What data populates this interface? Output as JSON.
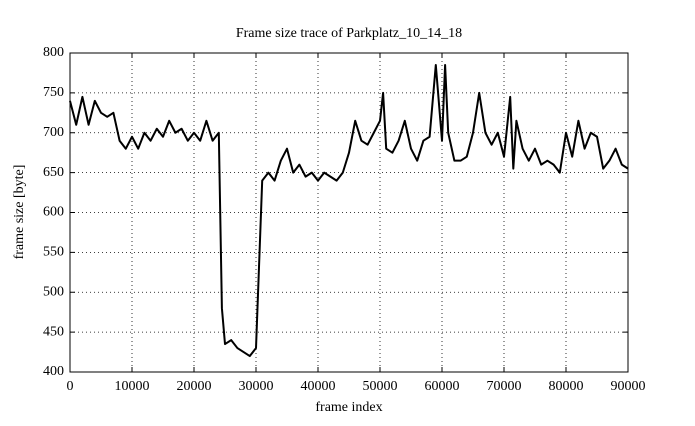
{
  "chart_data": {
    "type": "line",
    "title": "Frame size trace of Parkplatz_10_14_18",
    "x_label": "frame index",
    "y_label": "frame size [byte]",
    "xlim": [
      0,
      90000
    ],
    "ylim": [
      400,
      800
    ],
    "xticks": [
      0,
      10000,
      20000,
      30000,
      40000,
      50000,
      60000,
      70000,
      80000,
      90000
    ],
    "yticks": [
      400,
      450,
      500,
      550,
      600,
      650,
      700,
      750,
      800
    ],
    "grid": true,
    "x": [
      0,
      1000,
      2000,
      3000,
      4000,
      5000,
      6000,
      7000,
      8000,
      9000,
      10000,
      11000,
      12000,
      13000,
      14000,
      15000,
      16000,
      17000,
      18000,
      19000,
      20000,
      21000,
      22000,
      23000,
      24000,
      24500,
      25000,
      26000,
      27000,
      28000,
      29000,
      30000,
      31000,
      32000,
      33000,
      34000,
      35000,
      36000,
      37000,
      38000,
      39000,
      40000,
      41000,
      42000,
      43000,
      44000,
      45000,
      46000,
      47000,
      48000,
      49000,
      50000,
      50500,
      51000,
      52000,
      53000,
      54000,
      55000,
      56000,
      57000,
      58000,
      59000,
      60000,
      60500,
      61000,
      62000,
      63000,
      64000,
      65000,
      66000,
      67000,
      68000,
      69000,
      70000,
      71000,
      71500,
      72000,
      73000,
      74000,
      75000,
      76000,
      77000,
      78000,
      79000,
      80000,
      81000,
      82000,
      83000,
      84000,
      85000,
      86000,
      87000,
      88000,
      89000,
      90000
    ],
    "series": [
      {
        "color": "#000000",
        "values": [
          740,
          710,
          745,
          710,
          740,
          725,
          720,
          725,
          690,
          680,
          695,
          680,
          700,
          690,
          705,
          695,
          715,
          700,
          705,
          690,
          700,
          690,
          715,
          690,
          700,
          480,
          435,
          440,
          430,
          425,
          420,
          430,
          640,
          650,
          640,
          665,
          680,
          650,
          660,
          645,
          650,
          640,
          650,
          645,
          640,
          650,
          675,
          715,
          690,
          685,
          700,
          715,
          750,
          680,
          675,
          690,
          715,
          680,
          665,
          690,
          695,
          785,
          690,
          785,
          700,
          665,
          665,
          670,
          700,
          750,
          700,
          685,
          700,
          670,
          745,
          655,
          715,
          680,
          665,
          680,
          660,
          665,
          660,
          650,
          700,
          670,
          715,
          680,
          700,
          695,
          655,
          665,
          680,
          660,
          655
        ]
      }
    ]
  }
}
